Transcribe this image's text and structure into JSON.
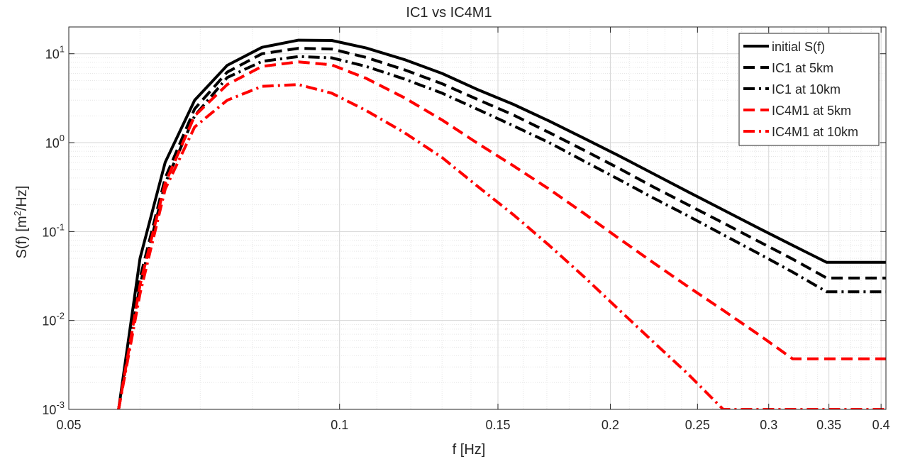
{
  "chart_data": {
    "type": "line",
    "title": "IC1 vs IC4M1",
    "xlabel": "f [Hz]",
    "ylabel": "S(f) [m²/Hz]",
    "ylabel_parts": {
      "pre": "S(f) [m",
      "sup": "2",
      "post": "/Hz]"
    },
    "xscale": "log",
    "yscale": "log",
    "xlim": [
      0.05,
      0.405
    ],
    "ylim": [
      0.001,
      20
    ],
    "grid": true,
    "minor_grid": true,
    "legend_location": "top-right",
    "x_ticks": [
      {
        "value": 0.05,
        "label": "0.05"
      },
      {
        "value": 0.1,
        "label": "0.1"
      },
      {
        "value": 0.15,
        "label": "0.15"
      },
      {
        "value": 0.2,
        "label": "0.2"
      },
      {
        "value": 0.25,
        "label": "0.25"
      },
      {
        "value": 0.3,
        "label": "0.3"
      },
      {
        "value": 0.35,
        "label": "0.35"
      },
      {
        "value": 0.4,
        "label": "0.4"
      }
    ],
    "y_ticks": [
      {
        "value": 10,
        "base": "10",
        "exp": "1"
      },
      {
        "value": 1,
        "base": "10",
        "exp": "0"
      },
      {
        "value": 0.1,
        "base": "10",
        "exp": "-1"
      },
      {
        "value": 0.01,
        "base": "10",
        "exp": "-2"
      },
      {
        "value": 0.001,
        "base": "10",
        "exp": "-3"
      }
    ],
    "x": [
      0.0568,
      0.06,
      0.064,
      0.069,
      0.075,
      0.082,
      0.09,
      0.098,
      0.107,
      0.118,
      0.13,
      0.142,
      0.156,
      0.171,
      0.187,
      0.204,
      0.223,
      0.244,
      0.267,
      0.292,
      0.319,
      0.348,
      0.38,
      0.405
    ],
    "series": [
      {
        "name": "initial S(f)",
        "color": "#000000",
        "dash": "solid",
        "values": [
          0.001,
          0.05,
          0.6,
          3.0,
          7.4,
          11.8,
          14.2,
          14.1,
          11.6,
          8.6,
          6.0,
          4.0,
          2.7,
          1.75,
          1.12,
          0.72,
          0.45,
          0.28,
          0.175,
          0.11,
          0.07,
          0.045,
          0.045,
          0.045
        ]
      },
      {
        "name": "IC1 at 5km",
        "color": "#000000",
        "dash": "dash",
        "values": [
          0.001,
          0.03,
          0.4,
          2.4,
          6.2,
          10.0,
          11.5,
          11.3,
          9.1,
          6.6,
          4.6,
          3.1,
          2.05,
          1.3,
          0.82,
          0.52,
          0.32,
          0.2,
          0.125,
          0.078,
          0.049,
          0.03,
          0.03,
          0.03
        ]
      },
      {
        "name": "IC1 at 10km",
        "color": "#000000",
        "dash": "dashdot",
        "values": [
          0.001,
          0.025,
          0.35,
          2.0,
          5.4,
          8.2,
          9.3,
          9.0,
          7.2,
          5.2,
          3.6,
          2.4,
          1.55,
          1.0,
          0.62,
          0.39,
          0.24,
          0.15,
          0.092,
          0.057,
          0.035,
          0.021,
          0.021,
          0.021
        ]
      },
      {
        "name": "IC4M1 at 5km",
        "color": "#ff0000",
        "dash": "dash",
        "values": [
          0.001,
          0.025,
          0.35,
          2.0,
          4.5,
          7.2,
          8.1,
          7.5,
          5.3,
          3.2,
          1.8,
          1.0,
          0.55,
          0.3,
          0.16,
          0.085,
          0.045,
          0.024,
          0.013,
          0.007,
          0.0037,
          0.0037,
          0.0037,
          0.0037
        ]
      },
      {
        "name": "IC4M1 at 10km",
        "color": "#ff0000",
        "dash": "dashdot",
        "values": [
          0.001,
          0.02,
          0.3,
          1.5,
          3.0,
          4.3,
          4.5,
          3.6,
          2.3,
          1.3,
          0.68,
          0.33,
          0.155,
          0.07,
          0.031,
          0.0135,
          0.0058,
          0.0025,
          0.001,
          0.001,
          0.001,
          0.001,
          0.001,
          0.001
        ]
      }
    ]
  }
}
